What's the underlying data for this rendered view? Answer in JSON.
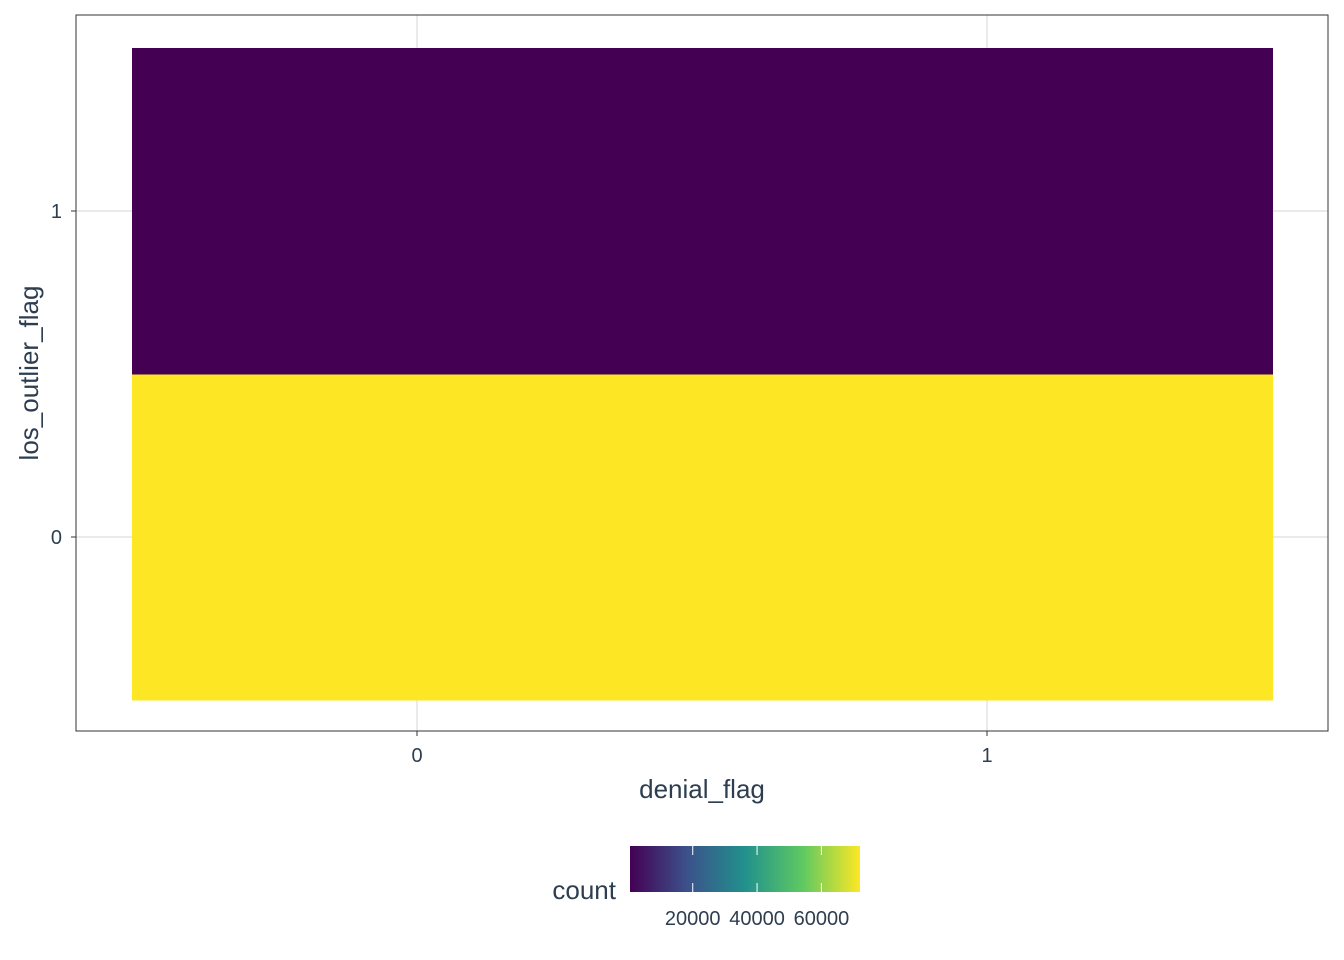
{
  "chart_data": {
    "type": "heatmap",
    "title": "",
    "xlabel": "denial_flag",
    "ylabel": "los_outlier_flag",
    "x_categories": [
      "0",
      "1"
    ],
    "y_categories": [
      "0",
      "1"
    ],
    "cells": [
      {
        "x": "0",
        "y": "0",
        "count": 72000
      },
      {
        "x": "1",
        "y": "0",
        "count": 72000
      },
      {
        "x": "0",
        "y": "1",
        "count": 500
      },
      {
        "x": "1",
        "y": "1",
        "count": 500
      }
    ],
    "grid": true,
    "legend": {
      "title": "count",
      "placement": "bottom",
      "colormap": "viridis",
      "range": [
        500,
        72000
      ],
      "ticks": [
        20000,
        40000,
        60000
      ],
      "tick_labels": [
        "20000",
        "40000",
        "60000"
      ],
      "colors": [
        "#440154",
        "#3b528b",
        "#21918c",
        "#5ec962",
        "#fde725"
      ]
    }
  }
}
